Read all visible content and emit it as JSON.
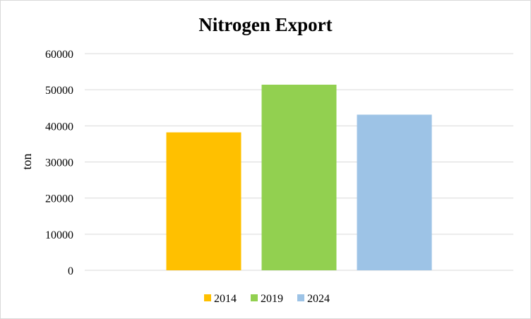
{
  "chart_data": {
    "type": "bar",
    "title": "Nitrogen Export",
    "ylabel": "ton",
    "xlabel": "",
    "ylim": [
      0,
      60000
    ],
    "yticks": [
      0,
      10000,
      20000,
      30000,
      40000,
      50000,
      60000
    ],
    "grid": true,
    "legend_position": "bottom",
    "series": [
      {
        "name": "2014",
        "value": 38200,
        "color": "#FFC000"
      },
      {
        "name": "2019",
        "value": 51400,
        "color": "#92D050"
      },
      {
        "name": "2024",
        "value": 43100,
        "color": "#9DC3E6"
      }
    ]
  }
}
